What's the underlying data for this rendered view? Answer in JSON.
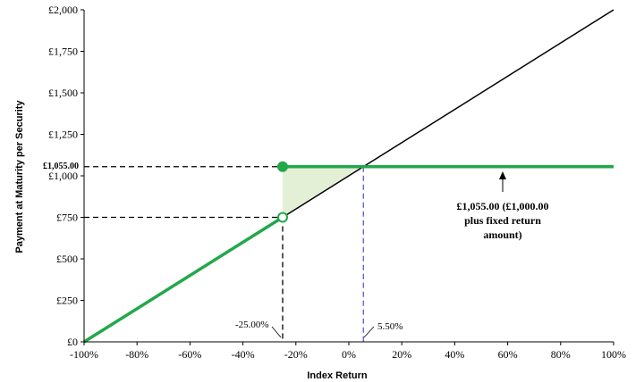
{
  "chart_data": {
    "type": "line",
    "title": "",
    "xlabel": "Index Return",
    "ylabel": "Payment at Maturity per Security",
    "xlim": [
      -100,
      100
    ],
    "ylim": [
      0,
      2000
    ],
    "x_ticks": [
      -100,
      -80,
      -60,
      -40,
      -20,
      0,
      20,
      40,
      60,
      80,
      100
    ],
    "x_tick_labels": [
      "-100%",
      "-80%",
      "-60%",
      "-40%",
      "-20%",
      "0%",
      "20%",
      "40%",
      "60%",
      "80%",
      "100%"
    ],
    "y_ticks": [
      0,
      250,
      500,
      750,
      1000,
      1250,
      1500,
      1750,
      2000
    ],
    "y_tick_labels": [
      "£0",
      "£250",
      "£500",
      "£750",
      "£1,000",
      "£1,250",
      "£1,500",
      "£1,750",
      "£2,000"
    ],
    "grid": false,
    "series": [
      {
        "color": "#000000",
        "points": [
          [
            -25,
            750
          ],
          [
            100,
            2000
          ]
        ]
      },
      {
        "color": "#22a84a",
        "points": [
          [
            -100,
            0
          ],
          [
            -25,
            750
          ]
        ]
      },
      {
        "color": "#22a84a",
        "points": [
          [
            -25,
            1055
          ],
          [
            100,
            1055
          ]
        ]
      }
    ],
    "markers": [
      {
        "x": -25,
        "y": 1055,
        "style": "filled",
        "color": "#22a84a"
      },
      {
        "x": -25,
        "y": 750,
        "style": "open",
        "color": "#22a84a"
      }
    ],
    "shaded_region": {
      "color": "#e3f0d6",
      "points": [
        [
          -25,
          750
        ],
        [
          -25,
          1055
        ],
        [
          5.5,
          1055
        ]
      ]
    },
    "reference_lines": [
      {
        "x": -25,
        "color": "#000000"
      },
      {
        "x": 5.5,
        "color": "#5b5bd6"
      },
      {
        "y": 1055,
        "color": "#000000"
      },
      {
        "y": 750,
        "color": "#000000"
      }
    ],
    "annotations": {
      "label_1055": "£1,055.00",
      "label_minus25": "-25.00%",
      "label_550": "5.50%",
      "callout_line1": "£1,055.00 (£1,000.00",
      "callout_line2": "plus fixed return",
      "callout_line3": "amount)"
    }
  }
}
